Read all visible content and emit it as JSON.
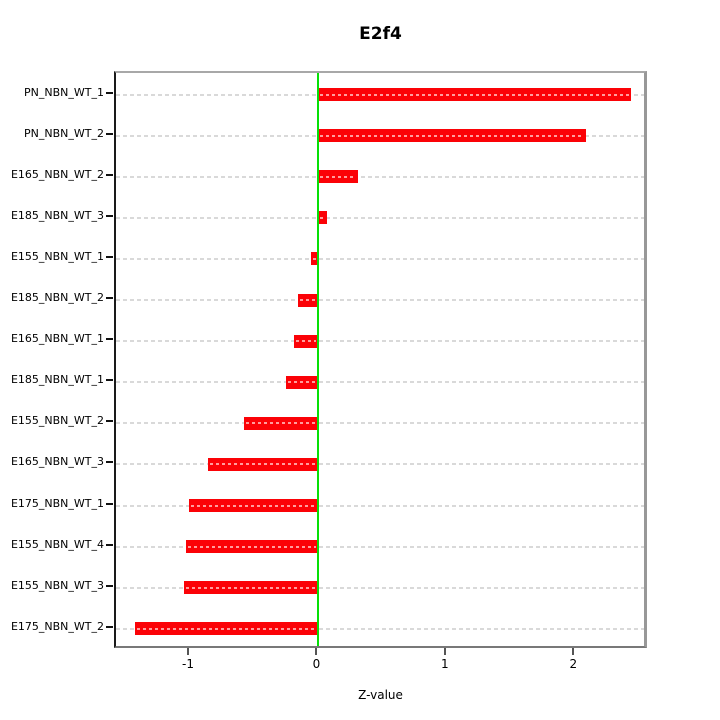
{
  "chart_data": {
    "type": "bar",
    "orientation": "horizontal",
    "title": "E2f4",
    "xlabel": "Z-value",
    "categories": [
      "PN_NBN_WT_1",
      "PN_NBN_WT_2",
      "E165_NBN_WT_2",
      "E185_NBN_WT_3",
      "E155_NBN_WT_1",
      "E185_NBN_WT_2",
      "E165_NBN_WT_1",
      "E185_NBN_WT_1",
      "E155_NBN_WT_2",
      "E165_NBN_WT_3",
      "E175_NBN_WT_1",
      "E155_NBN_WT_4",
      "E155_NBN_WT_3",
      "E175_NBN_WT_2"
    ],
    "values": [
      2.43,
      2.08,
      0.31,
      0.07,
      -0.06,
      -0.16,
      -0.19,
      -0.25,
      -0.58,
      -0.86,
      -1.01,
      -1.03,
      -1.05,
      -1.43
    ],
    "xticks": [
      {
        "value": -1,
        "label": "-1"
      },
      {
        "value": 0,
        "label": "0"
      },
      {
        "value": 1,
        "label": "1"
      },
      {
        "value": 2,
        "label": "2"
      }
    ],
    "xlim": [
      -1.576,
      2.574
    ],
    "grid": true,
    "legend_position": "none",
    "colors": {
      "bar": "#fb0207",
      "bar_inner_dash": "#ff9d9d",
      "zero_line": "#07e007",
      "gridline": "#d9d9d9",
      "box_border": "#989898",
      "axis": "#1a1a1a"
    }
  }
}
